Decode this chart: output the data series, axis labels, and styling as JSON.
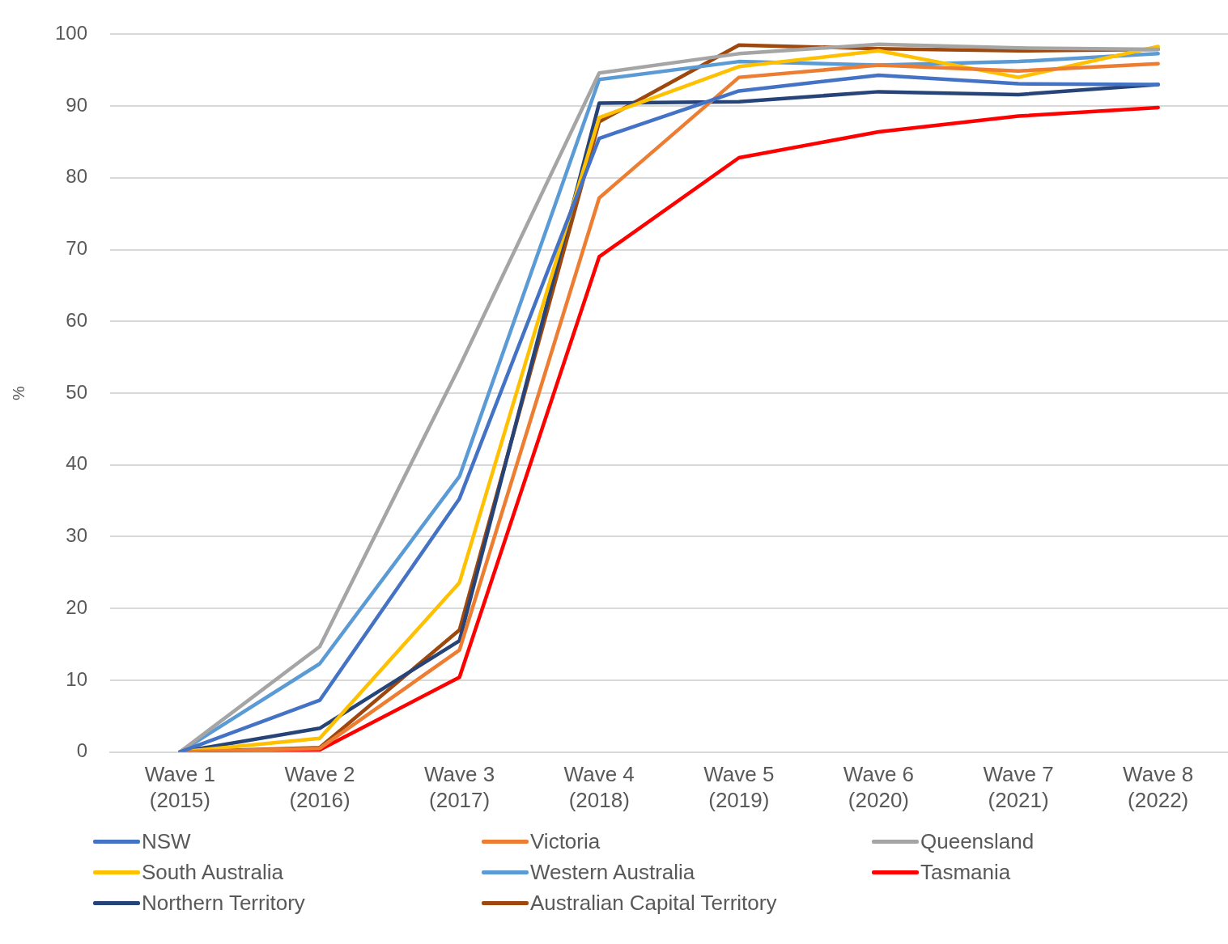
{
  "chart_data": {
    "type": "line",
    "ylabel": "%",
    "categories": [
      "Wave 1\n(2015)",
      "Wave 2\n(2016)",
      "Wave 3\n(2017)",
      "Wave 4\n(2018)",
      "Wave 5\n(2019)",
      "Wave 6\n(2020)",
      "Wave 7\n(2021)",
      "Wave 8\n(2022)"
    ],
    "ylim": [
      0,
      100
    ],
    "yticks": [
      0,
      10,
      20,
      30,
      40,
      50,
      60,
      70,
      80,
      90,
      100
    ],
    "grid": "y",
    "legend": "bottom",
    "marker": "none",
    "line_style": "solid",
    "series": [
      {
        "name": "NSW",
        "color": "#4472c4",
        "values": [
          0,
          7.2,
          35.3,
          85.5,
          92.1,
          94.3,
          93.1,
          93.0
        ]
      },
      {
        "name": "Victoria",
        "color": "#ed7d31",
        "values": [
          0,
          0.5,
          14.2,
          77.2,
          94.0,
          95.7,
          94.9,
          95.9
        ]
      },
      {
        "name": "Queensland",
        "color": "#a5a5a5",
        "values": [
          0,
          14.7,
          53.7,
          94.6,
          97.3,
          98.6,
          98.1,
          97.9
        ]
      },
      {
        "name": "South Australia",
        "color": "#ffc000",
        "values": [
          0,
          1.9,
          23.6,
          88.4,
          95.5,
          97.7,
          94.0,
          98.3
        ]
      },
      {
        "name": "Western Australia",
        "color": "#5b9bd5",
        "values": [
          0,
          12.3,
          38.4,
          93.7,
          96.2,
          95.7,
          96.2,
          97.3
        ]
      },
      {
        "name": "Tasmania",
        "color": "#ff0000",
        "values": [
          0,
          0.3,
          10.4,
          69.0,
          82.8,
          86.4,
          88.6,
          89.8
        ]
      },
      {
        "name": "Northern Territory",
        "color": "#264478",
        "values": [
          0,
          3.3,
          15.5,
          90.4,
          90.6,
          92.0,
          91.6,
          93.0
        ]
      },
      {
        "name": "Australian Capital Territory",
        "color": "#9e480e",
        "values": [
          0,
          0.6,
          17.0,
          87.8,
          98.5,
          98.0,
          97.7,
          97.9
        ]
      }
    ]
  }
}
